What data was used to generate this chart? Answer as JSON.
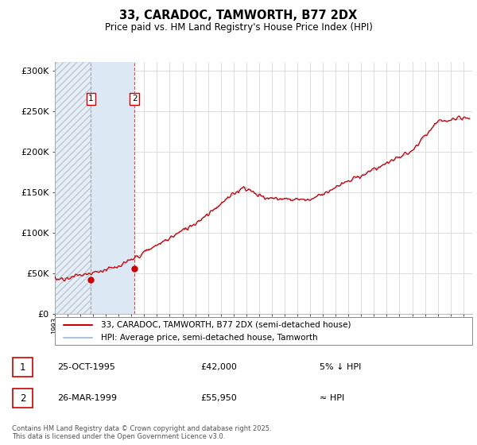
{
  "title": "33, CARADOC, TAMWORTH, B77 2DX",
  "subtitle": "Price paid vs. HM Land Registry's House Price Index (HPI)",
  "ylim": [
    0,
    310000
  ],
  "yticks": [
    0,
    50000,
    100000,
    150000,
    200000,
    250000,
    300000
  ],
  "ytick_labels": [
    "£0",
    "£50K",
    "£100K",
    "£150K",
    "£200K",
    "£250K",
    "£300K"
  ],
  "hpi_color": "#aac4de",
  "price_color": "#cc0000",
  "t1_year": 1995.83,
  "t1_price": 42000,
  "t2_year": 1999.25,
  "t2_price": 55950,
  "xmin": 1993,
  "xmax": 2025.7,
  "legend_line1": "33, CARADOC, TAMWORTH, B77 2DX (semi-detached house)",
  "legend_line2": "HPI: Average price, semi-detached house, Tamworth",
  "footer": "Contains HM Land Registry data © Crown copyright and database right 2025.\nThis data is licensed under the Open Government Licence v3.0.",
  "hatch_region_color": "#e8eef5",
  "solid_region_color": "#dce8f4"
}
